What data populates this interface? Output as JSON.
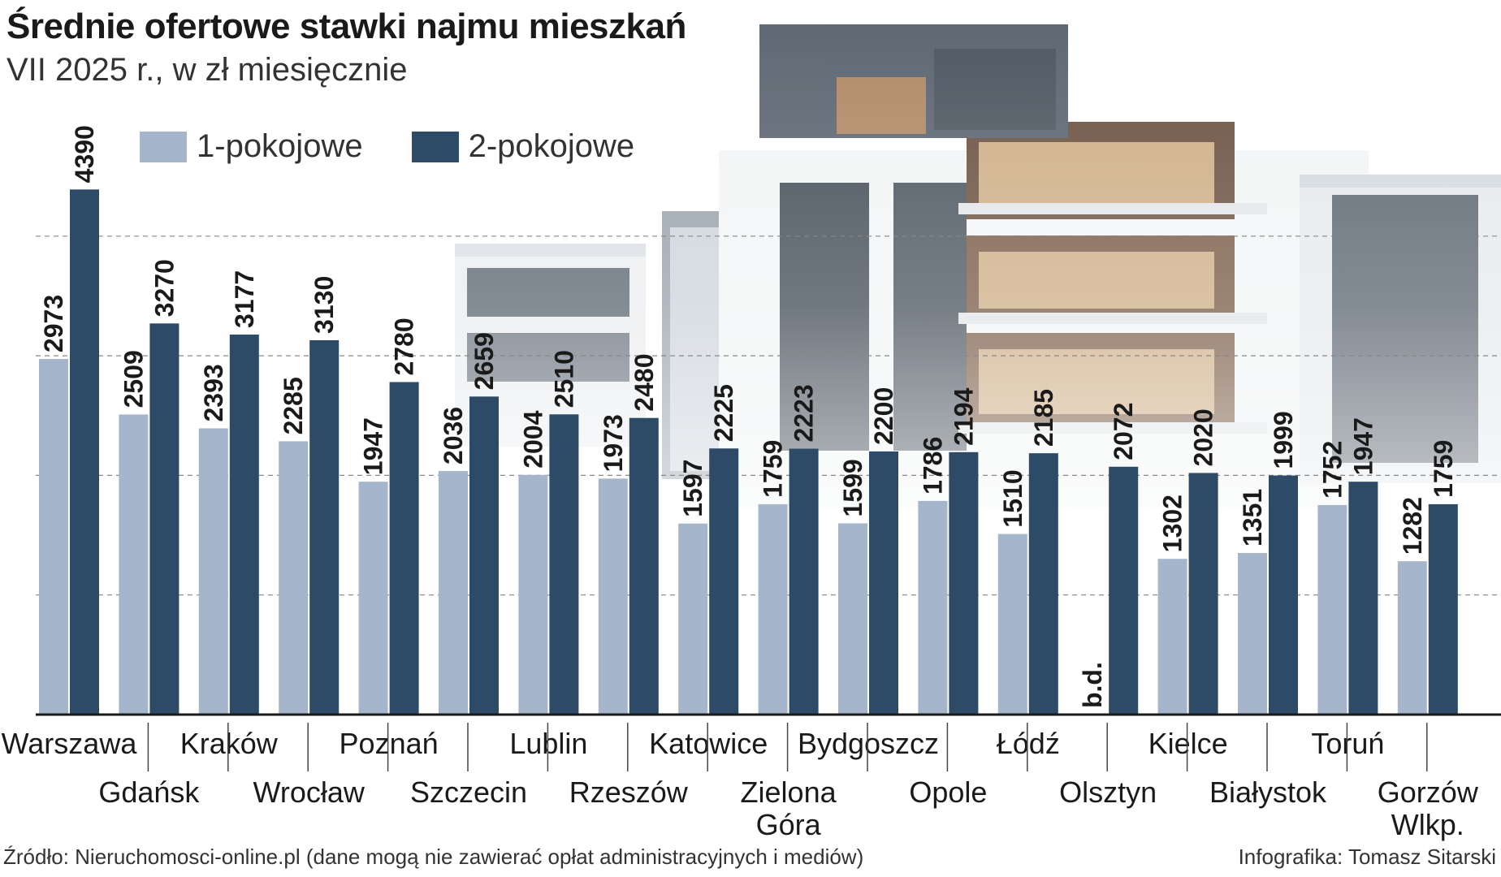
{
  "header": {
    "title": "Średnie ofertowe stawki najmu mieszkań",
    "subtitle": "VII 2025 r., w zł miesięcznie"
  },
  "colors": {
    "one_room": "#a5b5cb",
    "two_room": "#2d4a66",
    "axis": "#1a1a1a",
    "grid": "#888888"
  },
  "chart_data": {
    "type": "bar",
    "title": "Średnie ofertowe stawki najmu mieszkań",
    "subtitle": "VII 2025 r., w zł miesięcznie",
    "categories": [
      "Warszawa",
      "Gdańsk",
      "Kraków",
      "Wrocław",
      "Poznań",
      "Szczecin",
      "Lublin",
      "Rzeszów",
      "Katowice",
      "Zielona Góra",
      "Bydgoszcz",
      "Opole",
      "Łódź",
      "Olsztyn",
      "Kielce",
      "Białystok",
      "Toruń",
      "Gorzów Wlkp."
    ],
    "series": [
      {
        "name": "1-pokojowe",
        "values": [
          2973,
          2509,
          2393,
          2285,
          1947,
          2036,
          2004,
          1973,
          1597,
          1759,
          1599,
          1786,
          1510,
          null,
          1302,
          1351,
          1752,
          1282
        ],
        "labels": [
          "2973",
          "2509",
          "2393",
          "2285",
          "1947",
          "2036",
          "2004",
          "1973",
          "1597",
          "1759",
          "1599",
          "1786",
          "1510",
          "b.d.",
          "1302",
          "1351",
          "1752",
          "1282"
        ]
      },
      {
        "name": "2-pokojowe",
        "values": [
          4390,
          3270,
          3177,
          3130,
          2780,
          2659,
          2510,
          2480,
          2225,
          2223,
          2200,
          2194,
          2185,
          2072,
          2020,
          1999,
          1947,
          1759
        ],
        "labels": [
          "4390",
          "3270",
          "3177",
          "3130",
          "2780",
          "2659",
          "2510",
          "2480",
          "2225",
          "2223",
          "2200",
          "2194",
          "2185",
          "2072",
          "2020",
          "1999",
          "1947",
          "1759"
        ]
      }
    ],
    "category_labels": [
      [
        "Warszawa"
      ],
      [
        "Gdańsk"
      ],
      [
        "Kraków"
      ],
      [
        "Wrocław"
      ],
      [
        "Poznań"
      ],
      [
        "Szczecin"
      ],
      [
        "Lublin"
      ],
      [
        "Rzeszów"
      ],
      [
        "Katowice"
      ],
      [
        "Zielona",
        "Góra"
      ],
      [
        "Bydgoszcz"
      ],
      [
        "Opole"
      ],
      [
        "Łódź"
      ],
      [
        "Olsztyn"
      ],
      [
        "Kielce"
      ],
      [
        "Białystok"
      ],
      [
        "Toruń"
      ],
      [
        "Gorzów",
        "Wlkp."
      ]
    ],
    "ylim": [
      0,
      4500
    ],
    "gridlines": [
      1000,
      2000,
      3000,
      4000
    ],
    "legend": "top-left"
  },
  "footer": {
    "source": "Źródło: Nieruchomosci-online.pl (dane mogą nie zawierać opłat administracyjnych i mediów)",
    "credit": "Infografika: Tomasz Sitarski"
  }
}
